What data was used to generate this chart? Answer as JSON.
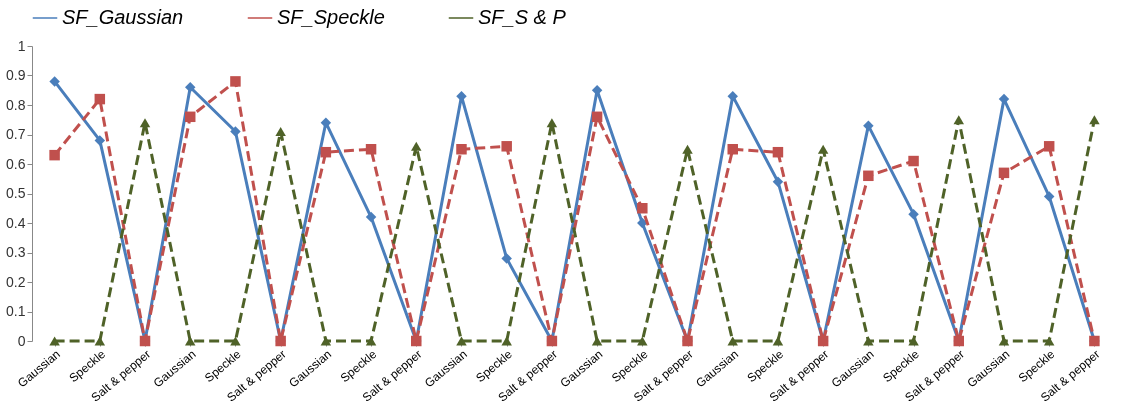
{
  "chart_data": {
    "type": "line",
    "categories": [
      "Gaussian",
      "Speckle",
      "Salt & pepper",
      "Gaussian",
      "Speckle",
      "Salt & pepper",
      "Gaussian",
      "Speckle",
      "Salt & pepper",
      "Gaussian",
      "Speckle",
      "Salt & pepper",
      "Gaussian",
      "Speckle",
      "Salt & pepper",
      "Gaussian",
      "Speckle",
      "Salt & pepper",
      "Gaussian",
      "Speckle",
      "Salt & pepper",
      "Gaussian",
      "Speckle",
      "Salt & pepper"
    ],
    "series": [
      {
        "name": "SF_Gaussian",
        "color": "#4a7ebb",
        "marker": "diamond",
        "line_style": "solid",
        "values": [
          0.88,
          0.68,
          0,
          0.86,
          0.71,
          0,
          0.74,
          0.42,
          0,
          0.83,
          0.28,
          0,
          0.85,
          0.4,
          0,
          0.83,
          0.54,
          0,
          0.73,
          0.43,
          0,
          0.82,
          0.49,
          0
        ]
      },
      {
        "name": "SF_Speckle",
        "color": "#c0504d",
        "marker": "square",
        "line_style": "dashed",
        "values": [
          0.63,
          0.82,
          0,
          0.76,
          0.88,
          0,
          0.64,
          0.65,
          0,
          0.65,
          0.66,
          0,
          0.76,
          0.45,
          0,
          0.65,
          0.64,
          0,
          0.56,
          0.61,
          0,
          0.57,
          0.66,
          0
        ]
      },
      {
        "name": "SF_S & P",
        "color": "#4f6228",
        "marker": "triangle",
        "line_style": "dashed",
        "values": [
          0,
          0,
          0.74,
          0,
          0,
          0.71,
          0,
          0,
          0.66,
          0,
          0,
          0.74,
          0,
          0,
          0.65,
          0,
          0,
          0.65,
          0,
          0,
          0.75,
          0,
          0,
          0.75
        ]
      }
    ],
    "ylim": [
      0,
      1
    ],
    "yticks": [
      0,
      0.1,
      0.2,
      0.3,
      0.4,
      0.5,
      0.6,
      0.7,
      0.8,
      0.9,
      1
    ],
    "grid": false,
    "legend": "top"
  }
}
